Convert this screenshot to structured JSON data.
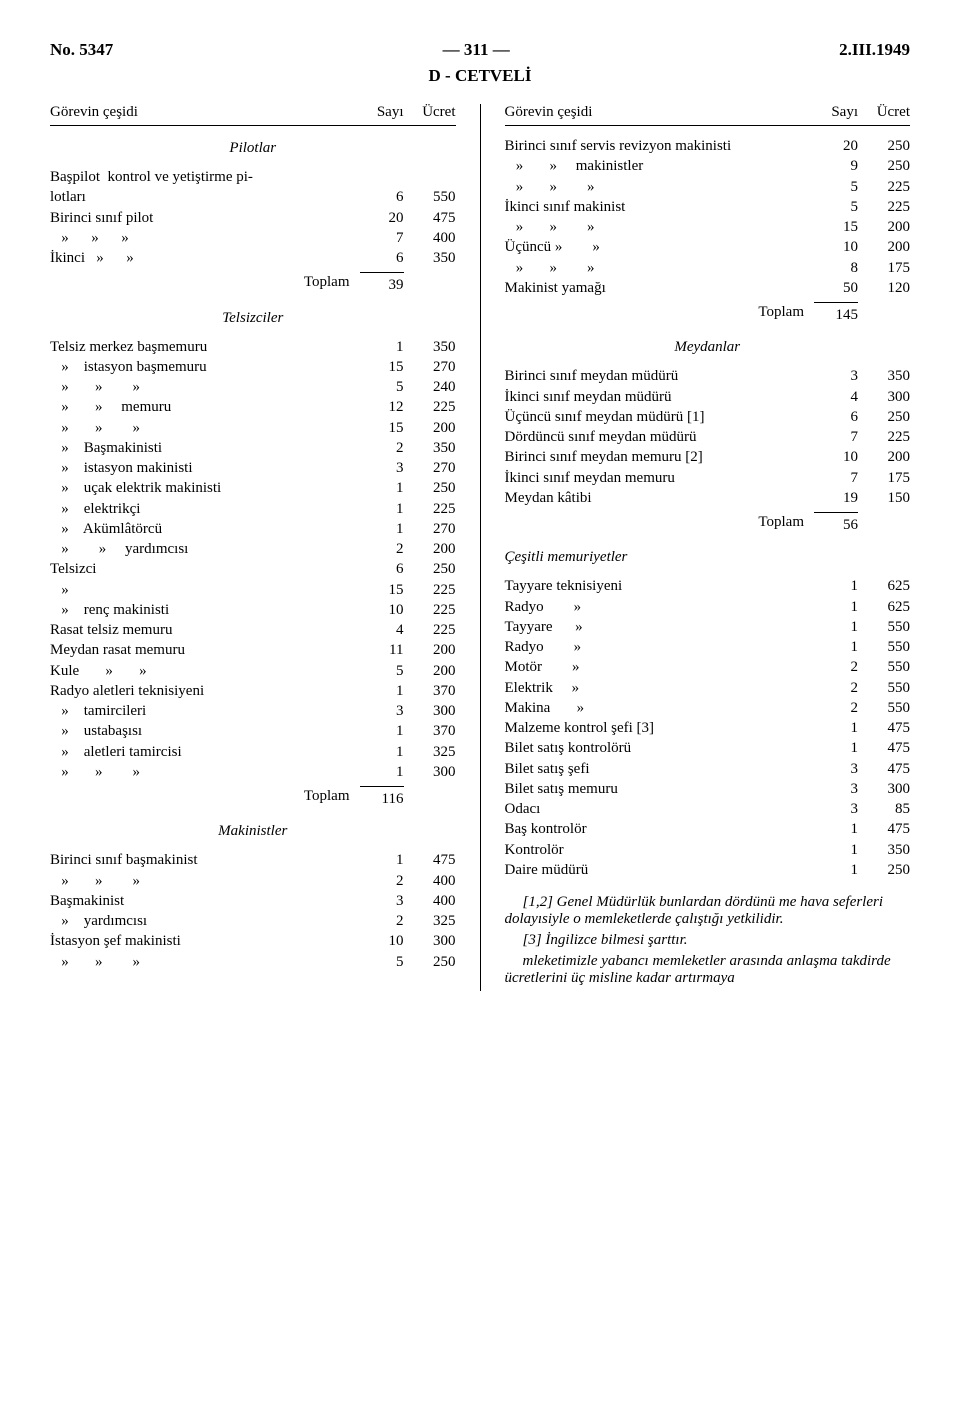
{
  "header": {
    "left": "No. 5347",
    "center": "— 311 —",
    "right": "2.III.1949"
  },
  "title": "D - CETVELİ",
  "colhead": {
    "left": "Görevin çeşidi",
    "num": "Sayı",
    "amt": "Ücret"
  },
  "left": {
    "pilotlar": {
      "title": "Pilotlar",
      "rows": [
        [
          "Başpilot  kontrol ve yetiştirme pi-",
          "",
          ""
        ],
        [
          "lotları",
          "6",
          "550"
        ],
        [
          "Birinci sınıf pilot",
          "20",
          "475"
        ],
        [
          "   »      »      »",
          "7",
          "400"
        ],
        [
          "İkinci   »      »",
          "6",
          "350"
        ]
      ],
      "total": [
        "Toplam",
        "39",
        ""
      ]
    },
    "telsizciler": {
      "title": "Telsizciler",
      "rows": [
        [
          "Telsiz merkez başmemuru",
          "1",
          "350"
        ],
        [
          "   »    istasyon başmemuru",
          "15",
          "270"
        ],
        [
          "   »       »        »",
          "5",
          "240"
        ],
        [
          "   »       »     memuru",
          "12",
          "225"
        ],
        [
          "   »       »        »",
          "15",
          "200"
        ],
        [
          "   »    Başmakinisti",
          "2",
          "350"
        ],
        [
          "   »    istasyon makinisti",
          "3",
          "270"
        ],
        [
          "   »    uçak elektrik makinisti",
          "1",
          "250"
        ],
        [
          "   »    elektrikçi",
          "1",
          "225"
        ],
        [
          "   »    Akümlâtörcü",
          "1",
          "270"
        ],
        [
          "   »        »     yardımcısı",
          "2",
          "200"
        ],
        [
          "Telsizci",
          "6",
          "250"
        ],
        [
          "   »",
          "15",
          "225"
        ],
        [
          "   »    renç makinisti",
          "10",
          "225"
        ],
        [
          "Rasat telsiz memuru",
          "4",
          "225"
        ],
        [
          "Meydan rasat memuru",
          "11",
          "200"
        ],
        [
          "Kule       »       »",
          "5",
          "200"
        ],
        [
          "Radyo aletleri teknisiyeni",
          "1",
          "370"
        ],
        [
          "   »    tamircileri",
          "3",
          "300"
        ],
        [
          "   »    ustabaşısı",
          "1",
          "370"
        ],
        [
          "   »    aletleri tamircisi",
          "1",
          "325"
        ],
        [
          "   »       »        »",
          "1",
          "300"
        ]
      ],
      "total": [
        "Toplam",
        "116",
        ""
      ]
    },
    "makinistler": {
      "title": "Makinistler",
      "rows": [
        [
          "Birinci sınıf başmakinist",
          "1",
          "475"
        ],
        [
          "   »       »        »",
          "2",
          "400"
        ],
        [
          "Başmakinist",
          "3",
          "400"
        ],
        [
          "   »    yardımcısı",
          "2",
          "325"
        ],
        [
          "İstasyon şef makinisti",
          "10",
          "300"
        ],
        [
          "   »       »        »",
          "5",
          "250"
        ]
      ]
    }
  },
  "right": {
    "top": {
      "rows": [
        [
          "Birinci sınıf servis revizyon makinisti",
          "20",
          "250"
        ],
        [
          "   »       »     makinistler",
          "9",
          "250"
        ],
        [
          "   »       »        »",
          "5",
          "225"
        ],
        [
          "İkinci sınıf makinist",
          "5",
          "225"
        ],
        [
          "   »       »        »",
          "15",
          "200"
        ],
        [
          "Üçüncü »        »",
          "10",
          "200"
        ],
        [
          "   »       »        »",
          "8",
          "175"
        ],
        [
          "Makinist yamağı",
          "50",
          "120"
        ]
      ],
      "total": [
        "Toplam",
        "145",
        ""
      ]
    },
    "meydanlar": {
      "title": "Meydanlar",
      "rows": [
        [
          "Birinci sınıf meydan müdürü",
          "3",
          "350"
        ],
        [
          "İkinci sınıf meydan müdürü",
          "4",
          "300"
        ],
        [
          "Üçüncü sınıf meydan müdürü [1]",
          "6",
          "250"
        ],
        [
          "Dördüncü sınıf meydan müdürü",
          "7",
          "225"
        ],
        [
          "Birinci sınıf meydan memuru [2]",
          "10",
          "200"
        ],
        [
          "İkinci sınıf meydan memuru",
          "7",
          "175"
        ],
        [
          "Meydan kâtibi",
          "19",
          "150"
        ]
      ],
      "total": [
        "Toplam",
        "56",
        ""
      ]
    },
    "cesitli": {
      "title": "Çeşitli memuriyetler",
      "rows": [
        [
          "Tayyare teknisiyeni",
          "1",
          "625"
        ],
        [
          "Radyo        »",
          "1",
          "625"
        ],
        [
          "Tayyare      »",
          "1",
          "550"
        ],
        [
          "Radyo        »",
          "1",
          "550"
        ],
        [
          "Motör        »",
          "2",
          "550"
        ],
        [
          "Elektrik     »",
          "2",
          "550"
        ],
        [
          "Makina       »",
          "2",
          "550"
        ],
        [
          "Malzeme kontrol şefi [3]",
          "1",
          "475"
        ],
        [
          "Bilet satış kontrolörü",
          "1",
          "475"
        ],
        [
          "Bilet satış şefi",
          "3",
          "475"
        ],
        [
          "Bilet satış memuru",
          "3",
          "300"
        ],
        [
          "Odacı",
          "3",
          "85"
        ],
        [
          "Baş kontrolör",
          "1",
          "475"
        ],
        [
          "Kontrolör",
          "1",
          "350"
        ],
        [
          "Daire müdürü",
          "1",
          "250"
        ]
      ]
    },
    "notes": [
      "[1,2] Genel Müdürlük bunlardan dördünü me hava seferleri dolayısiyle o memleketlerde çalıştığı yetkilidir.",
      "[3] İngilizce bilmesi şarttır.",
      "mleketimizle yabancı memleketler arasında anlaşma takdirde ücretlerini üç misline kadar artırmaya"
    ]
  }
}
